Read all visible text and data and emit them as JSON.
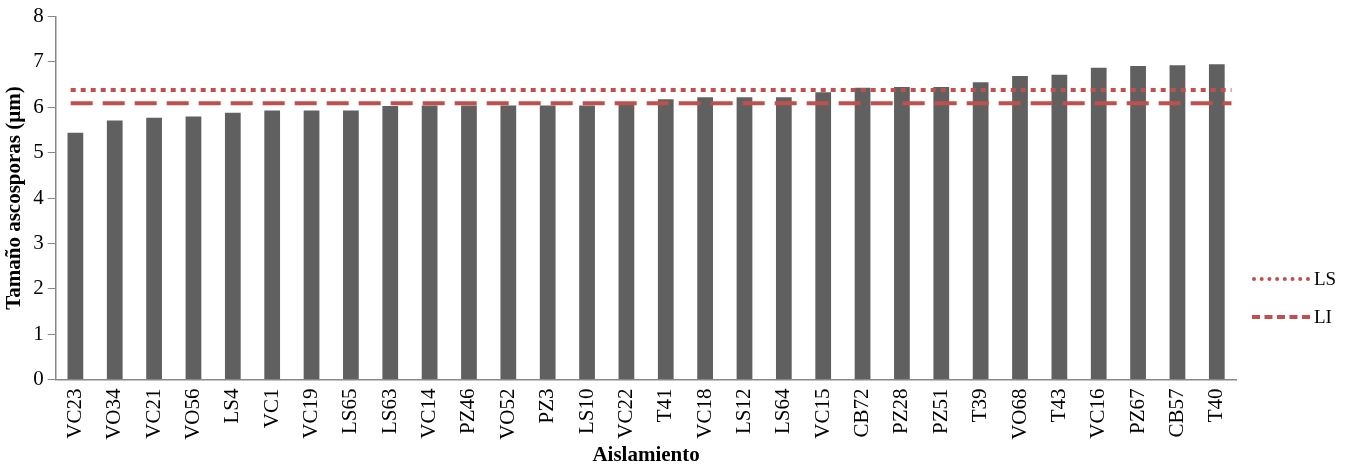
{
  "chart_data": {
    "type": "bar",
    "xlabel": "Aislamiento",
    "ylabel": "Tamaño ascosporas (µm)",
    "categories": [
      "VC23",
      "VO34",
      "VC21",
      "VO56",
      "LS4",
      "VC1",
      "VC19",
      "LS65",
      "LS63",
      "VC14",
      "PZ46",
      "VO52",
      "PZ3",
      "LS10",
      "VC22",
      "T41",
      "VC18",
      "LS12",
      "LS64",
      "VC15",
      "CB72",
      "PZ28",
      "PZ51",
      "T39",
      "VO68",
      "T43",
      "VC16",
      "PZ67",
      "CB57",
      "T40"
    ],
    "values": [
      5.44,
      5.71,
      5.77,
      5.8,
      5.88,
      5.93,
      5.93,
      5.93,
      6.03,
      6.04,
      6.04,
      6.04,
      6.04,
      6.04,
      6.06,
      6.18,
      6.22,
      6.22,
      6.22,
      6.33,
      6.43,
      6.45,
      6.45,
      6.55,
      6.69,
      6.72,
      6.87,
      6.91,
      6.93,
      6.95
    ],
    "color": "#606060",
    "ylim": [
      0,
      8
    ],
    "yticks": [
      0,
      1,
      2,
      3,
      4,
      5,
      6,
      7,
      8
    ],
    "grid": false,
    "legend": "right",
    "ref_lines": [
      {
        "axis": "y",
        "value": 6.38,
        "label": "LS",
        "color": "#c0504d",
        "line_style": "dotted"
      },
      {
        "axis": "y",
        "value": 6.09,
        "label": "LI",
        "color": "#c0504d",
        "line_style": "dashed"
      }
    ]
  }
}
